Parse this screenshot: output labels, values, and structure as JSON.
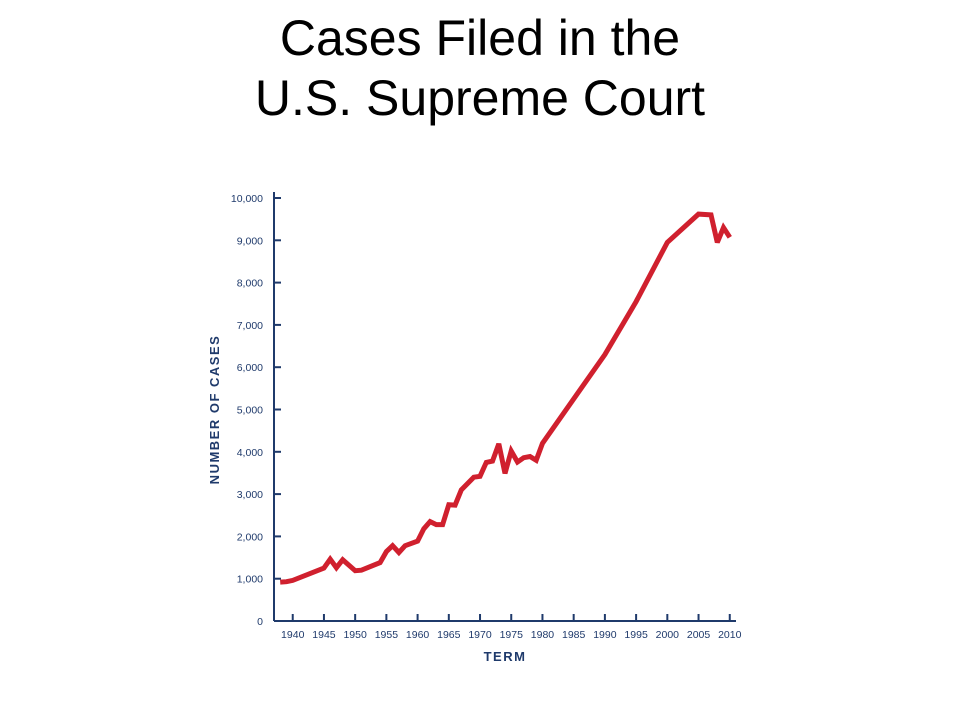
{
  "title_line1": "Cases Filed in the",
  "title_line2": "U.S. Supreme Court",
  "colors": {
    "axis": "#1f3a6b",
    "line": "#d0202e",
    "title": "#000000"
  },
  "chart_data": {
    "type": "line",
    "title": "Cases Filed in the U.S. Supreme Court",
    "xlabel": "TERM",
    "ylabel": "NUMBER OF CASES",
    "xlim": [
      1937,
      2011
    ],
    "ylim": [
      0,
      10000
    ],
    "grid": false,
    "legend": "none",
    "x_ticks": [
      1940,
      1945,
      1950,
      1955,
      1960,
      1965,
      1970,
      1975,
      1980,
      1985,
      1990,
      1995,
      2000,
      2005,
      2010
    ],
    "x_tick_labels": [
      "1940",
      "1945",
      "1950",
      "1955",
      "1960",
      "1965",
      "1970",
      "1975",
      "1980",
      "1985",
      "1990",
      "1995",
      "2000",
      "2005",
      "2010"
    ],
    "y_ticks": [
      0,
      1000,
      2000,
      3000,
      4000,
      5000,
      6000,
      7000,
      8000,
      9000,
      10000
    ],
    "y_tick_labels": [
      "0",
      "1,000",
      "2,000",
      "3,000",
      "4,000",
      "5,000",
      "6,000",
      "7,000",
      "8,000",
      "9,000",
      "10,000"
    ],
    "series": [
      {
        "x": [
          1938,
          1939,
          1940,
          1945,
          1946,
          1947,
          1948,
          1950,
          1951,
          1954,
          1955,
          1956,
          1957,
          1958,
          1960,
          1961,
          1962,
          1963,
          1964,
          1965,
          1966,
          1967,
          1969,
          1970,
          1971,
          1972,
          1973,
          1974,
          1975,
          1976,
          1977,
          1978,
          1979,
          1980,
          1990,
          1995,
          2000,
          2005,
          2007,
          2008,
          2009,
          2010
        ],
        "y": [
          920,
          930,
          960,
          1250,
          1460,
          1260,
          1450,
          1190,
          1200,
          1380,
          1640,
          1780,
          1620,
          1780,
          1890,
          2180,
          2350,
          2280,
          2280,
          2750,
          2740,
          3100,
          3400,
          3420,
          3750,
          3780,
          4190,
          3490,
          4020,
          3760,
          3860,
          3890,
          3800,
          4200,
          6300,
          7550,
          8950,
          9620,
          9600,
          8950,
          9300,
          9070
        ]
      }
    ]
  }
}
